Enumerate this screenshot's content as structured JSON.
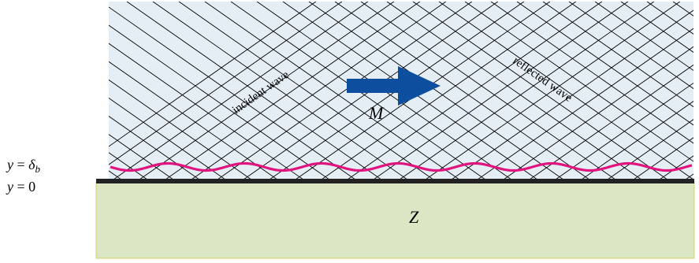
{
  "labels": {
    "incident_wave": "incident wave",
    "reflected_wave": "reflected wave",
    "mach": "M",
    "impedance": "Z",
    "y_delta": "y = δb",
    "y_zero": "y = 0"
  },
  "colors": {
    "fluid_bg": "#e6eef5",
    "wall_bg": "#dbe7c4",
    "wall_border": "#d6cf6a",
    "wall_line": "#222222",
    "boundary_layer": "#e0137f",
    "arrow": "#0e4e9e",
    "lines": "#000000"
  },
  "icons": {
    "flow_arrow": "arrow-right-icon"
  }
}
